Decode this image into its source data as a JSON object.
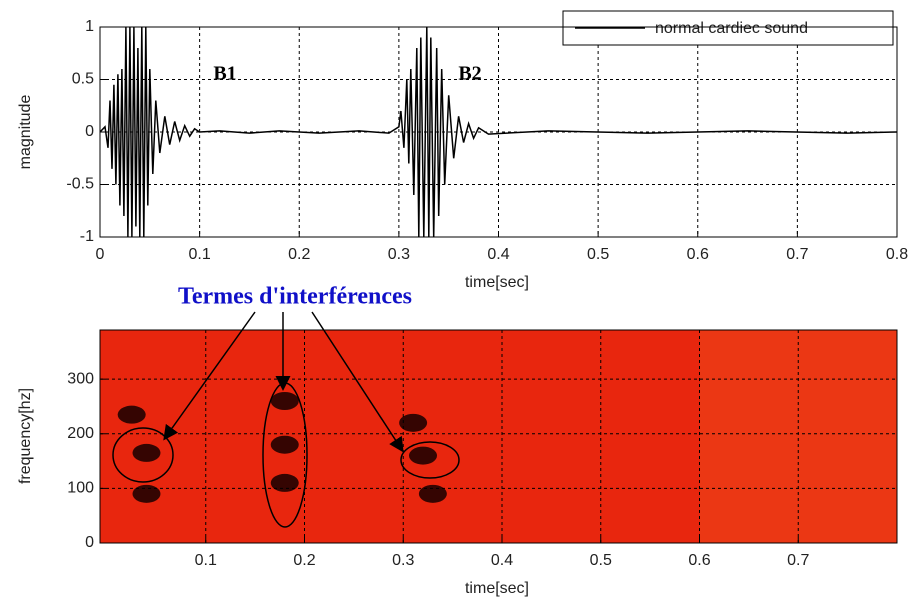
{
  "chart_data": [
    {
      "type": "line",
      "xlabel": "time[sec]",
      "ylabel": "magnitude",
      "xlim": [
        0,
        0.8
      ],
      "ylim": [
        -1,
        1
      ],
      "xticks": [
        0,
        0.1,
        0.2,
        0.3,
        0.4,
        0.5,
        0.6,
        0.7,
        0.8
      ],
      "yticks": [
        -1,
        -0.5,
        0,
        0.5,
        1
      ],
      "grid": true,
      "legend": "upper right",
      "annotations": [
        "B1",
        "B2"
      ],
      "x": [
        0.0,
        0.005,
        0.008,
        0.01,
        0.012,
        0.014,
        0.016,
        0.018,
        0.02,
        0.022,
        0.024,
        0.026,
        0.028,
        0.03,
        0.032,
        0.034,
        0.036,
        0.038,
        0.04,
        0.042,
        0.044,
        0.046,
        0.048,
        0.05,
        0.053,
        0.056,
        0.06,
        0.065,
        0.07,
        0.075,
        0.08,
        0.085,
        0.09,
        0.095,
        0.1,
        0.12,
        0.15,
        0.18,
        0.22,
        0.26,
        0.29,
        0.3,
        0.302,
        0.305,
        0.308,
        0.31,
        0.312,
        0.315,
        0.318,
        0.32,
        0.322,
        0.325,
        0.328,
        0.33,
        0.332,
        0.335,
        0.338,
        0.34,
        0.343,
        0.346,
        0.35,
        0.355,
        0.36,
        0.365,
        0.37,
        0.375,
        0.38,
        0.39,
        0.45,
        0.55,
        0.65,
        0.75,
        0.8
      ],
      "series": [
        {
          "name": "normal cardiec sound",
          "color": "#000000",
          "values": [
            0,
            0.05,
            -0.15,
            0.3,
            -0.35,
            0.45,
            -0.5,
            0.55,
            -0.7,
            0.6,
            -0.8,
            1,
            -1,
            1,
            -1,
            1,
            -0.9,
            0.8,
            -1,
            1,
            -1,
            1,
            -0.7,
            0.6,
            -0.4,
            0.3,
            -0.2,
            0.15,
            -0.12,
            0.1,
            -0.08,
            0.06,
            -0.04,
            0.03,
            0,
            0.01,
            -0.01,
            0.01,
            -0.01,
            0.01,
            -0.01,
            0.05,
            0.2,
            -0.15,
            0.5,
            -0.3,
            0.6,
            -0.6,
            0.8,
            -1,
            0.9,
            -1,
            1,
            -1,
            0.9,
            -1,
            0.8,
            -0.8,
            0.6,
            -0.5,
            0.35,
            -0.25,
            0.15,
            -0.1,
            0.08,
            -0.06,
            0.04,
            -0.02,
            0.01,
            -0.01,
            0.01,
            -0.01,
            0
          ]
        }
      ]
    },
    {
      "type": "spectrogram",
      "title": "Termes d'interférences",
      "xlabel": "time[sec]",
      "ylabel": "frequency[hz]",
      "xlim": [
        0,
        0.8
      ],
      "ylim": [
        0,
        390
      ],
      "xticks": [
        0.1,
        0.2,
        0.3,
        0.4,
        0.5,
        0.6,
        0.7
      ],
      "yticks": [
        0,
        100,
        200,
        300
      ],
      "grid": true,
      "background": "#e8260e",
      "points": {
        "x": [
          0.025,
          0.04,
          0.04,
          0.18,
          0.18,
          0.18,
          0.32,
          0.33,
          0.31
        ],
        "y": [
          235,
          165,
          90,
          110,
          180,
          260,
          160,
          90,
          220
        ]
      }
    }
  ]
}
